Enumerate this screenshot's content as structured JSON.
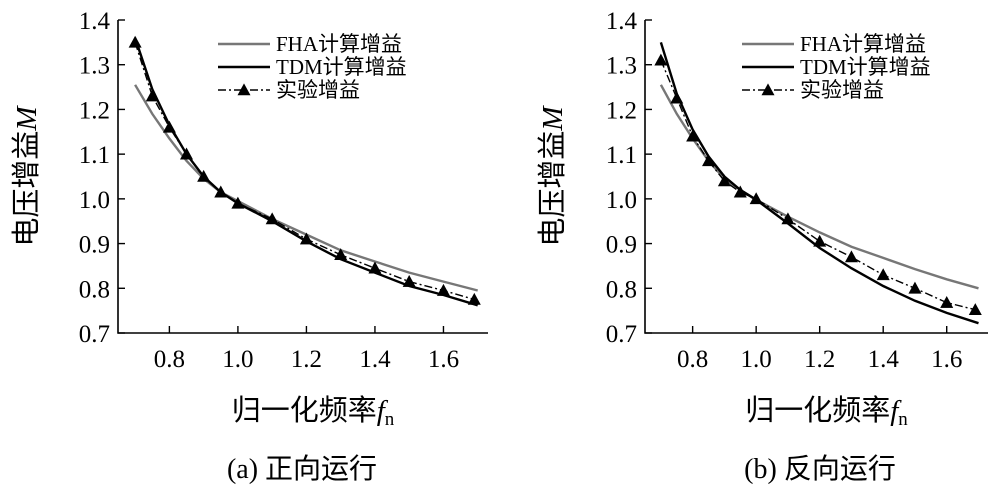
{
  "chart_data": [
    {
      "type": "line",
      "caption": "(a)  正向运行",
      "xlabel": "归一化频率",
      "xlabel_var": "f",
      "xlabel_sub": "n",
      "ylabel": "电压增益",
      "ylabel_var": "M",
      "xlim": [
        0.65,
        1.73
      ],
      "ylim": [
        0.7,
        1.4
      ],
      "xticks": [
        "0.8",
        "1.0",
        "1.2",
        "1.4",
        "1.6"
      ],
      "yticks": [
        "0.7",
        "0.8",
        "0.9",
        "1.0",
        "1.1",
        "1.2",
        "1.3",
        "1.4"
      ],
      "legend_position": "top-right",
      "series": [
        {
          "name": "FHA计算增益",
          "color": "#777777",
          "style": "solid",
          "x": [
            0.7,
            0.75,
            0.8,
            0.85,
            0.9,
            0.95,
            1.0,
            1.1,
            1.2,
            1.3,
            1.4,
            1.5,
            1.6,
            1.7
          ],
          "y": [
            1.255,
            1.19,
            1.135,
            1.085,
            1.045,
            1.015,
            0.995,
            0.955,
            0.92,
            0.885,
            0.86,
            0.835,
            0.815,
            0.795
          ]
        },
        {
          "name": "TDM计算增益",
          "color": "#000000",
          "style": "solid",
          "x": [
            0.7,
            0.75,
            0.8,
            0.85,
            0.9,
            0.95,
            1.0,
            1.1,
            1.2,
            1.3,
            1.4,
            1.5,
            1.6,
            1.7
          ],
          "y": [
            1.36,
            1.245,
            1.165,
            1.1,
            1.05,
            1.015,
            0.99,
            0.95,
            0.905,
            0.865,
            0.835,
            0.805,
            0.785,
            0.762
          ]
        },
        {
          "name": "实验增益",
          "color": "#000000",
          "style": "dashdot",
          "marker": "triangle",
          "x": [
            0.7,
            0.75,
            0.8,
            0.85,
            0.9,
            0.95,
            1.0,
            1.1,
            1.2,
            1.3,
            1.4,
            1.5,
            1.6,
            1.69
          ],
          "y": [
            1.35,
            1.23,
            1.16,
            1.1,
            1.05,
            1.015,
            0.99,
            0.955,
            0.91,
            0.875,
            0.845,
            0.815,
            0.795,
            0.775
          ]
        }
      ]
    },
    {
      "type": "line",
      "caption": "(b)  反向运行",
      "xlabel": "归一化频率",
      "xlabel_var": "f",
      "xlabel_sub": "n",
      "ylabel": "电压增益",
      "ylabel_var": "M",
      "xlim": [
        0.65,
        1.73
      ],
      "ylim": [
        0.7,
        1.4
      ],
      "xticks": [
        "0.8",
        "1.0",
        "1.2",
        "1.4",
        "1.6"
      ],
      "yticks": [
        "0.7",
        "0.8",
        "0.9",
        "1.0",
        "1.1",
        "1.2",
        "1.3",
        "1.4"
      ],
      "legend_position": "top-right",
      "series": [
        {
          "name": "FHA计算增益",
          "color": "#777777",
          "style": "solid",
          "x": [
            0.7,
            0.75,
            0.8,
            0.85,
            0.9,
            0.95,
            1.0,
            1.1,
            1.2,
            1.3,
            1.4,
            1.5,
            1.6,
            1.7
          ],
          "y": [
            1.255,
            1.19,
            1.135,
            1.085,
            1.045,
            1.02,
            0.998,
            0.96,
            0.925,
            0.893,
            0.868,
            0.843,
            0.82,
            0.8
          ]
        },
        {
          "name": "TDM计算增益",
          "color": "#000000",
          "style": "solid",
          "x": [
            0.7,
            0.75,
            0.8,
            0.85,
            0.9,
            0.95,
            1.0,
            1.1,
            1.2,
            1.3,
            1.4,
            1.5,
            1.6,
            1.7
          ],
          "y": [
            1.35,
            1.235,
            1.155,
            1.095,
            1.05,
            1.02,
            0.998,
            0.945,
            0.89,
            0.845,
            0.805,
            0.772,
            0.745,
            0.722
          ]
        },
        {
          "name": "实验增益",
          "color": "#000000",
          "style": "dashdot",
          "marker": "triangle",
          "x": [
            0.7,
            0.75,
            0.8,
            0.85,
            0.9,
            0.95,
            1.0,
            1.1,
            1.2,
            1.3,
            1.4,
            1.5,
            1.6,
            1.69
          ],
          "y": [
            1.31,
            1.225,
            1.14,
            1.085,
            1.04,
            1.015,
            1.0,
            0.955,
            0.905,
            0.87,
            0.83,
            0.8,
            0.768,
            0.752
          ]
        }
      ]
    }
  ]
}
